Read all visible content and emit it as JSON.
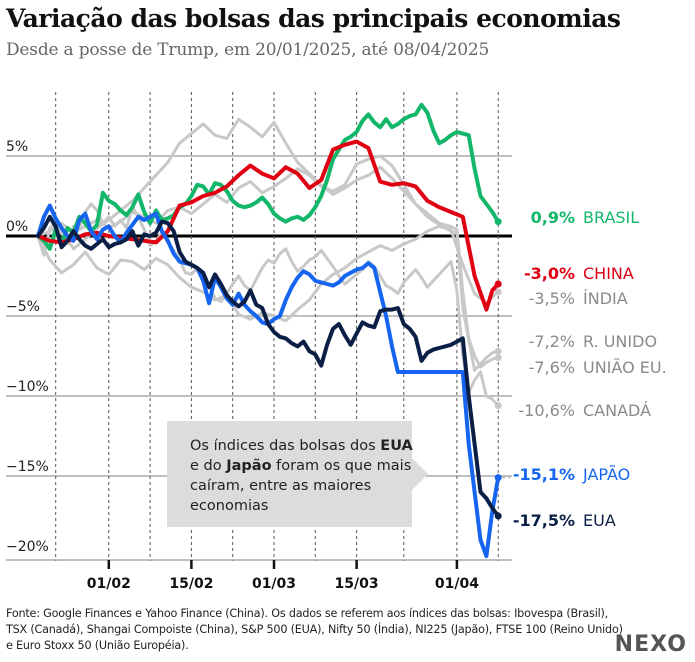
{
  "header": {
    "title": "Variação das bolsas das principais economias",
    "subtitle": "Desde a posse de Trump, em 20/01/2025, até 08/04/2025"
  },
  "annotation": {
    "parts": [
      {
        "text": "Os índices das bolsas dos ",
        "bold": false
      },
      {
        "text": "EUA",
        "bold": true
      },
      {
        "text": " e do ",
        "bold": false
      },
      {
        "text": "Japão",
        "bold": true
      },
      {
        "text": " foram os que mais caíram, entre as maiores economias",
        "bold": false
      }
    ]
  },
  "footer": {
    "source": "Fonte: Google Finances e Yahoo Finance (China). Os dados se referem aos índices das bolsas: Ibovespa (Brasil), TSX (Canadá), Shangai Compoiste (China), S&P 500 (EUA), Nifty 50 (Índia), NI225 (Japão), FTSE 100 (Reino Unido) e Euro Stoxx 50 (União Européia).",
    "logo": "NEXO"
  },
  "chart_data": {
    "type": "line",
    "title": "Variação das bolsas das principais economias",
    "subtitle": "Desde a posse de Trump, em 20/01/2025, até 08/04/2025",
    "xlabel": "",
    "ylabel": "",
    "x_unit": "days since 20/01/2025",
    "xlim": [
      0,
      78
    ],
    "ylim": [
      -20.5,
      8.5
    ],
    "grid": true,
    "yticks": [
      {
        "value": 5,
        "label": "5%"
      },
      {
        "value": 0,
        "label": "0%"
      },
      {
        "value": -5,
        "label": "−5%"
      },
      {
        "value": -10,
        "label": "−10%"
      },
      {
        "value": -15,
        "label": "−15%"
      },
      {
        "value": -20,
        "label": "−20%"
      }
    ],
    "xticks": [
      {
        "value": 12,
        "label": "01/02"
      },
      {
        "value": 26,
        "label": "15/02"
      },
      {
        "value": 40,
        "label": "01/03"
      },
      {
        "value": 54,
        "label": "15/03"
      },
      {
        "value": 71,
        "label": "01/04"
      }
    ],
    "x_gridlines": [
      3,
      12,
      19,
      26,
      33,
      40,
      47,
      54,
      62,
      71,
      78
    ],
    "series": [
      {
        "name": "CANADÁ",
        "end_label": "-10,6%",
        "color": "#c8c8c8",
        "label_color": "#8a8a8a",
        "highlight": false,
        "x": [
          0,
          1,
          2,
          3,
          4,
          5,
          6,
          7,
          8,
          9,
          10,
          11,
          12,
          13,
          14,
          15,
          16,
          17,
          18,
          19,
          20,
          21,
          22,
          23,
          24,
          25,
          26,
          27,
          28,
          29,
          30,
          31,
          32,
          33,
          34,
          35,
          36,
          37,
          38,
          39,
          40,
          41,
          42,
          43,
          44,
          45,
          46,
          47,
          48,
          49,
          50,
          51,
          52,
          53,
          54,
          55,
          56,
          57,
          58,
          59,
          60,
          61,
          62,
          63,
          64,
          65,
          66,
          67,
          68,
          69,
          70,
          71,
          72,
          73,
          74,
          75,
          76,
          77,
          78
        ],
        "y": [
          0,
          -1.2,
          0.5,
          0.8,
          0.2,
          -0.5,
          0.6,
          0.4,
          1.5,
          2.0,
          1.6,
          0.8,
          1.2,
          0.6,
          1.0,
          0.5,
          1.8,
          1.2,
          0.4,
          -0.6,
          -0.3,
          0.2,
          -0.4,
          -0.9,
          -1.5,
          -2.3,
          -2.4,
          -2.0,
          -2.7,
          -3.1,
          -3.9,
          -4.1,
          -3.6,
          -3.0,
          -2.5,
          -3.1,
          -3.4,
          -2.7,
          -2.0,
          -1.5,
          -1.7,
          -1.1,
          -0.8,
          -1.6,
          -2.2,
          -1.9,
          -1.5,
          -1.3,
          -0.9,
          -1.4,
          -1.9,
          -2.5,
          -3.0,
          -2.7,
          -2.4,
          -2.1,
          -1.6,
          -1.9,
          -2.5,
          -3.1,
          -3.3,
          -3.6,
          -2.9,
          -2.5,
          -2.1,
          -2.6,
          -3.2,
          -2.8,
          -2.4,
          -2.0,
          -1.6,
          -3.4,
          -7.5,
          -9.8,
          -9.0,
          -8.5,
          -10.0,
          -10.2,
          -10.6
        ]
      },
      {
        "name": "R. UNIDO",
        "end_label": "-7,2%",
        "color": "#c8c8c8",
        "label_color": "#8a8a8a",
        "highlight": false,
        "x": [
          0,
          2,
          4,
          6,
          8,
          10,
          12,
          14,
          16,
          18,
          20,
          22,
          24,
          26,
          28,
          30,
          32,
          34,
          36,
          38,
          40,
          42,
          44,
          46,
          48,
          50,
          52,
          54,
          56,
          58,
          60,
          62,
          64,
          66,
          68,
          70,
          71,
          72,
          73,
          74,
          75,
          76,
          77,
          78
        ],
        "y": [
          0,
          0.3,
          0.8,
          0.2,
          0.6,
          1.0,
          0.5,
          0.9,
          1.5,
          1.2,
          0.8,
          1.6,
          1.8,
          1.4,
          2.0,
          2.6,
          2.1,
          3.0,
          3.4,
          2.7,
          3.1,
          3.6,
          4.2,
          3.8,
          3.1,
          2.8,
          3.2,
          4.5,
          4.8,
          5.0,
          4.4,
          3.2,
          2.0,
          1.2,
          0.7,
          0.3,
          0.2,
          -4.5,
          -6.5,
          -8.4,
          -8.0,
          -7.6,
          -7.3,
          -7.2
        ]
      },
      {
        "name": "UNIÃO EU.",
        "end_label": "-7,6%",
        "color": "#c8c8c8",
        "label_color": "#8a8a8a",
        "highlight": false,
        "x": [
          0,
          2,
          4,
          6,
          8,
          10,
          12,
          14,
          16,
          18,
          20,
          22,
          24,
          26,
          28,
          30,
          32,
          34,
          36,
          38,
          40,
          42,
          44,
          46,
          48,
          50,
          52,
          54,
          56,
          58,
          60,
          62,
          64,
          66,
          68,
          70,
          71,
          72,
          73,
          74,
          75,
          76,
          77,
          78
        ],
        "y": [
          0,
          -0.5,
          0.4,
          -0.8,
          -0.2,
          0.5,
          1.0,
          1.6,
          2.2,
          3.0,
          3.8,
          4.6,
          5.8,
          6.4,
          7.0,
          6.3,
          6.1,
          7.3,
          6.8,
          6.2,
          7.1,
          5.8,
          4.6,
          3.9,
          3.2,
          2.6,
          3.0,
          3.5,
          3.8,
          4.3,
          3.6,
          2.8,
          2.0,
          1.4,
          0.8,
          0.6,
          0.4,
          -3.5,
          -6.4,
          -7.5,
          -8.2,
          -7.9,
          -7.7,
          -7.6
        ]
      },
      {
        "name": "ÍNDIA",
        "end_label": "-3,5%",
        "color": "#c8c8c8",
        "label_color": "#8a8a8a",
        "highlight": false,
        "x": [
          0,
          2,
          4,
          6,
          8,
          10,
          12,
          14,
          16,
          18,
          20,
          22,
          24,
          26,
          28,
          30,
          32,
          34,
          36,
          38,
          40,
          42,
          44,
          46,
          48,
          50,
          52,
          54,
          56,
          58,
          60,
          62,
          64,
          66,
          68,
          70,
          72,
          74,
          76,
          77,
          78
        ],
        "y": [
          0,
          -1.5,
          -2.3,
          -1.8,
          -1.0,
          -2.0,
          -2.4,
          -1.5,
          -1.6,
          -2.1,
          -1.4,
          -1.8,
          -2.6,
          -3.2,
          -3.5,
          -4.0,
          -3.7,
          -4.9,
          -5.2,
          -4.8,
          -5.0,
          -5.3,
          -4.6,
          -4.0,
          -3.0,
          -2.4,
          -2.0,
          -1.4,
          -1.0,
          -0.6,
          -0.9,
          -0.5,
          -0.2,
          0.3,
          0.6,
          0.4,
          -1.8,
          -3.6,
          -4.2,
          -3.8,
          -3.5
        ]
      },
      {
        "name": "BRASIL",
        "end_label": "0,9%",
        "color": "#12b76a",
        "label_color": "#12b76a",
        "highlight": true,
        "x": [
          0,
          1,
          2,
          3,
          4,
          5,
          6,
          7,
          8,
          9,
          10,
          11,
          12,
          13,
          14,
          15,
          16,
          17,
          18,
          19,
          20,
          21,
          22,
          23,
          24,
          25,
          26,
          27,
          28,
          29,
          30,
          31,
          32,
          33,
          34,
          35,
          36,
          37,
          38,
          39,
          40,
          41,
          42,
          43,
          44,
          45,
          46,
          47,
          48,
          49,
          50,
          51,
          52,
          53,
          54,
          55,
          56,
          57,
          58,
          59,
          60,
          61,
          62,
          63,
          64,
          65,
          66,
          67,
          68,
          69,
          70,
          71,
          72,
          73,
          74,
          75,
          76,
          77,
          78
        ],
        "y": [
          0,
          -0.3,
          -0.8,
          0.4,
          -0.5,
          0.5,
          0.2,
          1.2,
          0.8,
          0.3,
          0.7,
          2.7,
          2.2,
          2.0,
          1.6,
          1.3,
          1.8,
          2.6,
          1.5,
          0.8,
          1.6,
          1.0,
          1.1,
          1.3,
          1.8,
          2.0,
          2.5,
          3.2,
          3.1,
          2.6,
          3.3,
          3.2,
          2.8,
          2.2,
          1.9,
          1.8,
          1.9,
          2.1,
          2.4,
          2.0,
          1.4,
          1.1,
          0.9,
          1.1,
          1.2,
          1.0,
          1.3,
          1.8,
          2.5,
          3.5,
          4.8,
          5.4,
          6.0,
          6.2,
          6.5,
          7.2,
          7.6,
          7.1,
          6.8,
          7.3,
          6.8,
          7.0,
          7.3,
          7.5,
          7.6,
          8.2,
          7.7,
          6.6,
          5.8,
          6.0,
          6.3,
          6.5,
          6.4,
          6.3,
          4.2,
          2.5,
          2.0,
          1.5,
          0.9
        ]
      },
      {
        "name": "CHINA",
        "end_label": "-3,0%",
        "color": "#e00012",
        "label_color": "#e00012",
        "highlight": true,
        "x": [
          0,
          2,
          4,
          6,
          8,
          10,
          12,
          14,
          16,
          18,
          20,
          22,
          24,
          26,
          28,
          30,
          32,
          34,
          36,
          38,
          40,
          42,
          44,
          46,
          48,
          50,
          52,
          54,
          56,
          58,
          60,
          62,
          64,
          66,
          68,
          70,
          72,
          74,
          76,
          77,
          78
        ],
        "y": [
          0,
          -0.3,
          -0.4,
          -0.2,
          0.1,
          0.2,
          0.0,
          -0.1,
          -0.2,
          -0.3,
          -0.4,
          0.3,
          1.9,
          2.1,
          2.5,
          2.7,
          3.1,
          3.8,
          4.4,
          3.9,
          3.6,
          4.3,
          3.9,
          3.0,
          3.5,
          5.4,
          5.7,
          5.9,
          5.5,
          3.4,
          3.2,
          3.3,
          3.1,
          2.2,
          1.8,
          1.5,
          1.2,
          -2.5,
          -4.6,
          -3.4,
          -3.0
        ]
      },
      {
        "name": "JAPÃO",
        "end_label": "-15,1%",
        "color": "#1565f0",
        "label_color": "#1565f0",
        "highlight": true,
        "x": [
          0,
          1,
          2,
          3,
          4,
          5,
          6,
          7,
          8,
          9,
          10,
          11,
          12,
          13,
          14,
          15,
          16,
          17,
          18,
          19,
          20,
          21,
          22,
          23,
          24,
          25,
          26,
          27,
          28,
          29,
          30,
          31,
          32,
          33,
          34,
          35,
          36,
          37,
          38,
          39,
          40,
          41,
          42,
          43,
          44,
          45,
          46,
          47,
          48,
          49,
          50,
          51,
          52,
          53,
          54,
          55,
          56,
          57,
          58,
          59,
          60,
          61,
          62,
          63,
          64,
          65,
          66,
          67,
          68,
          69,
          70,
          71,
          72,
          73,
          74,
          75,
          76,
          77,
          78
        ],
        "y": [
          0,
          1.2,
          1.9,
          1.1,
          0.5,
          0.0,
          -0.3,
          1.0,
          1.4,
          0.3,
          -0.2,
          0.4,
          0.6,
          0.0,
          -0.4,
          0.2,
          0.7,
          1.2,
          1.0,
          1.2,
          1.4,
          0.3,
          -0.3,
          -1.1,
          -1.6,
          -1.7,
          -1.8,
          -2.0,
          -2.8,
          -4.2,
          -2.6,
          -3.2,
          -3.9,
          -4.3,
          -3.6,
          -4.3,
          -4.7,
          -5.0,
          -5.4,
          -5.5,
          -5.2,
          -5.0,
          -4.0,
          -3.2,
          -2.6,
          -2.2,
          -2.4,
          -2.8,
          -2.9,
          -3.0,
          -3.1,
          -2.9,
          -2.5,
          -2.3,
          -2.1,
          -2.0,
          -1.7,
          -2.0,
          -3.5,
          -5.0,
          -6.9,
          -8.5,
          -8.5,
          -8.5,
          -8.5,
          -8.5,
          -8.5,
          -8.5,
          -8.5,
          -8.5,
          -8.5,
          -8.5,
          -8.5,
          -13.0,
          -16.0,
          -19.0,
          -20.0,
          -17.2,
          -15.1
        ]
      },
      {
        "name": "EUA",
        "end_label": "-17,5%",
        "color": "#0b1e45",
        "label_color": "#0b1e45",
        "highlight": true,
        "x": [
          0,
          1,
          2,
          3,
          4,
          5,
          6,
          7,
          8,
          9,
          10,
          11,
          12,
          13,
          14,
          15,
          16,
          17,
          18,
          19,
          20,
          21,
          22,
          23,
          24,
          25,
          26,
          27,
          28,
          29,
          30,
          31,
          32,
          33,
          34,
          35,
          36,
          37,
          38,
          39,
          40,
          41,
          42,
          43,
          44,
          45,
          46,
          47,
          48,
          49,
          50,
          51,
          52,
          53,
          54,
          55,
          56,
          57,
          58,
          59,
          60,
          61,
          62,
          63,
          64,
          65,
          66,
          67,
          68,
          69,
          70,
          71,
          72,
          73,
          74,
          75,
          76,
          77,
          78
        ],
        "y": [
          0,
          0.5,
          1.2,
          0.6,
          -0.7,
          -0.3,
          0.3,
          -0.2,
          -0.6,
          -0.8,
          -0.5,
          -0.2,
          -0.7,
          -0.5,
          -0.4,
          -0.2,
          0.3,
          -0.6,
          0.1,
          0.0,
          0.2,
          0.9,
          0.8,
          0.3,
          -1.0,
          -1.6,
          -1.8,
          -2.0,
          -2.3,
          -3.2,
          -2.4,
          -3.0,
          -3.7,
          -4.1,
          -4.4,
          -4.1,
          -3.4,
          -4.3,
          -4.5,
          -5.5,
          -6.0,
          -6.3,
          -6.4,
          -6.7,
          -6.9,
          -6.6,
          -7.2,
          -7.4,
          -8.1,
          -6.8,
          -5.8,
          -5.5,
          -6.2,
          -6.8,
          -6.1,
          -5.4,
          -5.6,
          -5.7,
          -4.7,
          -4.6,
          -4.6,
          -4.5,
          -5.5,
          -5.8,
          -6.3,
          -7.8,
          -7.3,
          -7.1,
          -7.0,
          -6.9,
          -6.8,
          -6.6,
          -6.4,
          -10.0,
          -13.0,
          -16.0,
          -16.4,
          -17.0,
          -17.5
        ]
      }
    ]
  }
}
